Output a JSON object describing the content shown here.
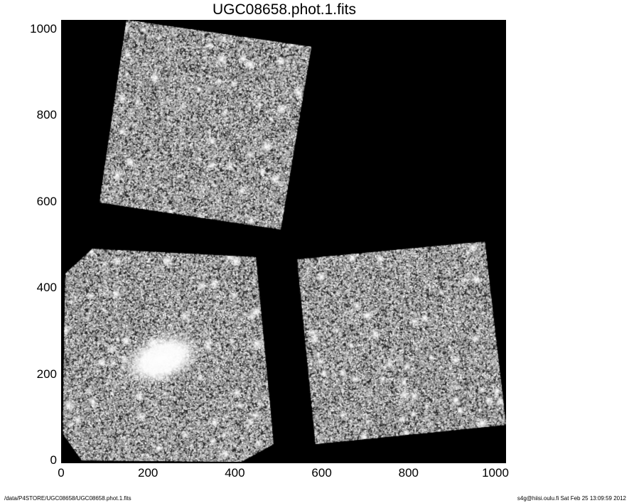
{
  "chart_data": {
    "type": "heatmap",
    "title": "UGC08658.phot.1.fits",
    "xlabel": "",
    "ylabel": "",
    "xlim": [
      0,
      1020
    ],
    "ylim": [
      0,
      1020
    ],
    "x_ticks": [
      "0",
      "200",
      "400",
      "600",
      "800",
      "1000"
    ],
    "y_ticks": [
      "0",
      "200",
      "400",
      "600",
      "800",
      "1000"
    ],
    "colormap": "grayscale",
    "background_color": "#000000",
    "grid": false
  },
  "footer": {
    "path": "/data/P4STORE/UGC08658/UGC08658.phot.1.fits",
    "stamp": "s4g@hiisi.oulu.fi  Sat Feb 25 13:09:59 2012"
  }
}
